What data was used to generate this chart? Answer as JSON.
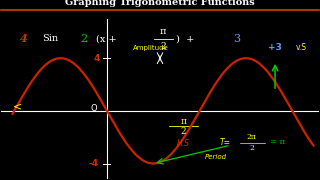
{
  "title": "Graphing Trigonometric Functions",
  "title_color": "#ffffff",
  "title_underline_color": "#cc4400",
  "bg_color": "#000000",
  "curve_color": "#cc2200",
  "axis_color": "#ffffff",
  "label_4_color": "#cc3300",
  "label_neg4_color": "#cc3300",
  "label_o_color": "#ffffff",
  "amplitude_color": "#ffff00",
  "hs_color": "#cc3300",
  "pi2_color": "#ffff00",
  "vs_3_color": "#6699ff",
  "vs_label_color": "#ffff00",
  "period_color": "#ffff00",
  "period_eq_color": "#00cc00",
  "arrow_white": "#ffffff",
  "arrow_green": "#00cc00",
  "green_color": "#00cc00",
  "xlim": [
    -1.8,
    3.6
  ],
  "ylim": [
    -5.2,
    7.0
  ],
  "x_start": -1.6,
  "x_end": 3.5
}
